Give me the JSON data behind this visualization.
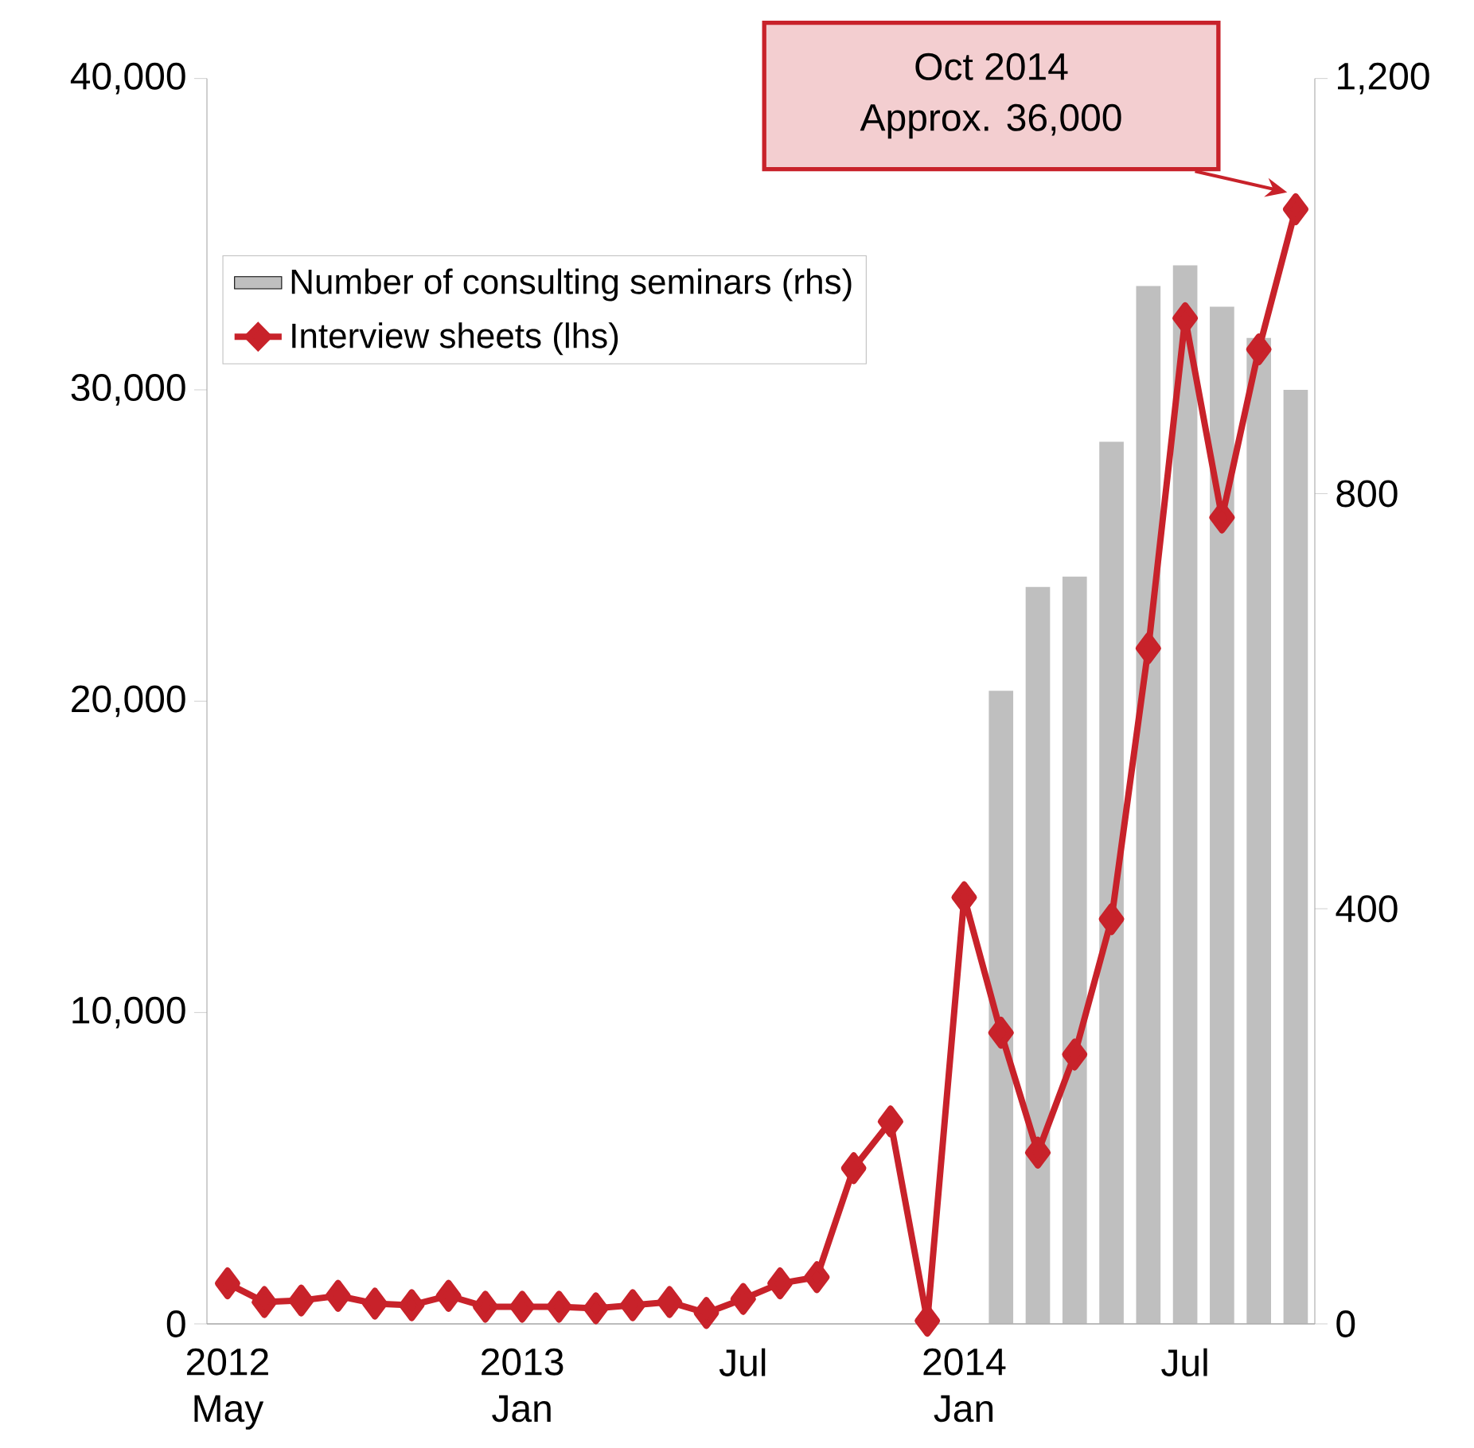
{
  "chart_data": {
    "type": "bar",
    "categories": [
      "2012 May",
      null,
      null,
      null,
      null,
      null,
      null,
      null,
      "2013 Jan",
      null,
      null,
      null,
      null,
      null,
      "Jul",
      null,
      null,
      null,
      null,
      null,
      "2014 Jan",
      null,
      null,
      null,
      null,
      null,
      "Jul",
      null,
      null,
      null
    ],
    "series": [
      {
        "name": "Number of consulting seminars (rhs)",
        "axis": "y2",
        "color": "#bfbfbf",
        "values": [
          null,
          null,
          null,
          null,
          null,
          null,
          null,
          null,
          null,
          null,
          null,
          null,
          null,
          null,
          null,
          null,
          null,
          null,
          null,
          null,
          null,
          610,
          710,
          720,
          850,
          1000,
          1020,
          980,
          950,
          900
        ]
      },
      {
        "name": "Interview sheets (lhs)",
        "type": "line",
        "color": "#c8222a",
        "values": [
          1300,
          700,
          750,
          900,
          650,
          600,
          900,
          550,
          550,
          550,
          500,
          600,
          700,
          350,
          800,
          1300,
          1500,
          5000,
          6500,
          100,
          13700,
          9350,
          5500,
          8650,
          13000,
          21700,
          32300,
          25900,
          31300,
          35800
        ]
      }
    ],
    "marker": "diamond",
    "ylim": [
      0,
      40000
    ],
    "yticks": [
      0,
      {
        "value": 10000,
        "label": "10,000"
      },
      {
        "value": 20000,
        "label": "20,000"
      },
      {
        "value": 30000,
        "label": "30,000"
      },
      {
        "value": 40000,
        "label": "40,000"
      }
    ],
    "y2lim": [
      0,
      1200
    ],
    "y2ticks": [
      0,
      400,
      800,
      {
        "value": 1200,
        "label": "1,200"
      }
    ],
    "legend": "top left",
    "annotations": [
      "Oct 2014",
      "Approx. 36,000"
    ]
  }
}
